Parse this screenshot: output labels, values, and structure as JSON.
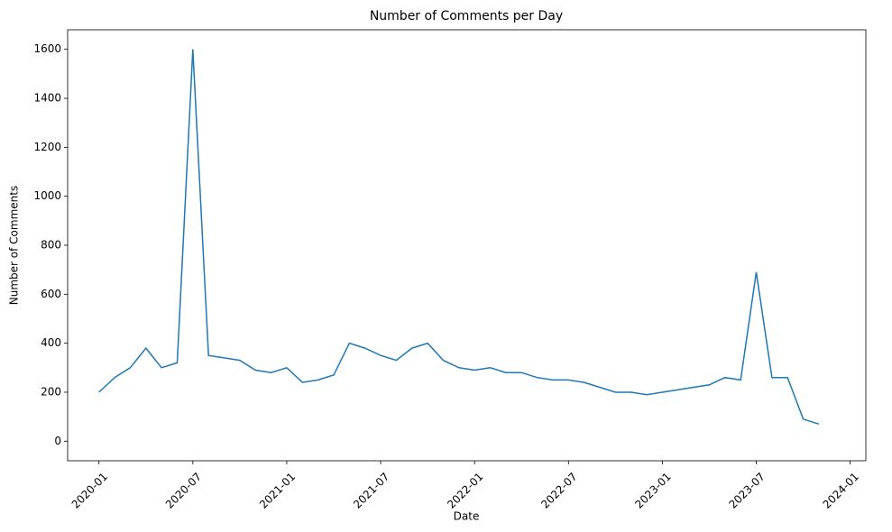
{
  "chart_data": {
    "type": "line",
    "title": "Number of Comments per Day",
    "x_label": "Date",
    "y_label": "Number of Comments",
    "x": [
      "2020-01",
      "2020-02",
      "2020-03",
      "2020-04",
      "2020-05",
      "2020-06",
      "2020-07",
      "2020-08",
      "2020-09",
      "2020-10",
      "2020-11",
      "2020-12",
      "2021-01",
      "2021-02",
      "2021-03",
      "2021-04",
      "2021-05",
      "2021-06",
      "2021-07",
      "2021-08",
      "2021-09",
      "2021-10",
      "2021-11",
      "2021-12",
      "2022-01",
      "2022-02",
      "2022-03",
      "2022-04",
      "2022-05",
      "2022-06",
      "2022-07",
      "2022-08",
      "2022-09",
      "2022-10",
      "2022-11",
      "2022-12",
      "2023-01",
      "2023-02",
      "2023-03",
      "2023-04",
      "2023-05",
      "2023-06",
      "2023-07",
      "2023-08",
      "2023-09",
      "2023-10",
      "2023-11"
    ],
    "series": [
      {
        "name": "Number of Comments",
        "color": "#1f77b4",
        "values": [
          200,
          260,
          300,
          380,
          300,
          320,
          1600,
          350,
          340,
          330,
          290,
          280,
          300,
          240,
          250,
          270,
          400,
          380,
          350,
          330,
          380,
          400,
          330,
          300,
          290,
          300,
          280,
          280,
          260,
          250,
          250,
          240,
          220,
          200,
          200,
          190,
          200,
          210,
          220,
          230,
          260,
          250,
          690,
          260,
          260,
          90,
          70
        ]
      }
    ],
    "xlim": [
      "2019-11",
      "2024-02"
    ],
    "xticks": [
      "2020-01",
      "2020-07",
      "2021-01",
      "2021-07",
      "2022-01",
      "2022-07",
      "2023-01",
      "2023-07",
      "2024-01"
    ],
    "ylim": [
      -80,
      1680
    ],
    "yticks": [
      0,
      200,
      400,
      600,
      800,
      1000,
      1200,
      1400,
      1600
    ],
    "grid": false
  }
}
